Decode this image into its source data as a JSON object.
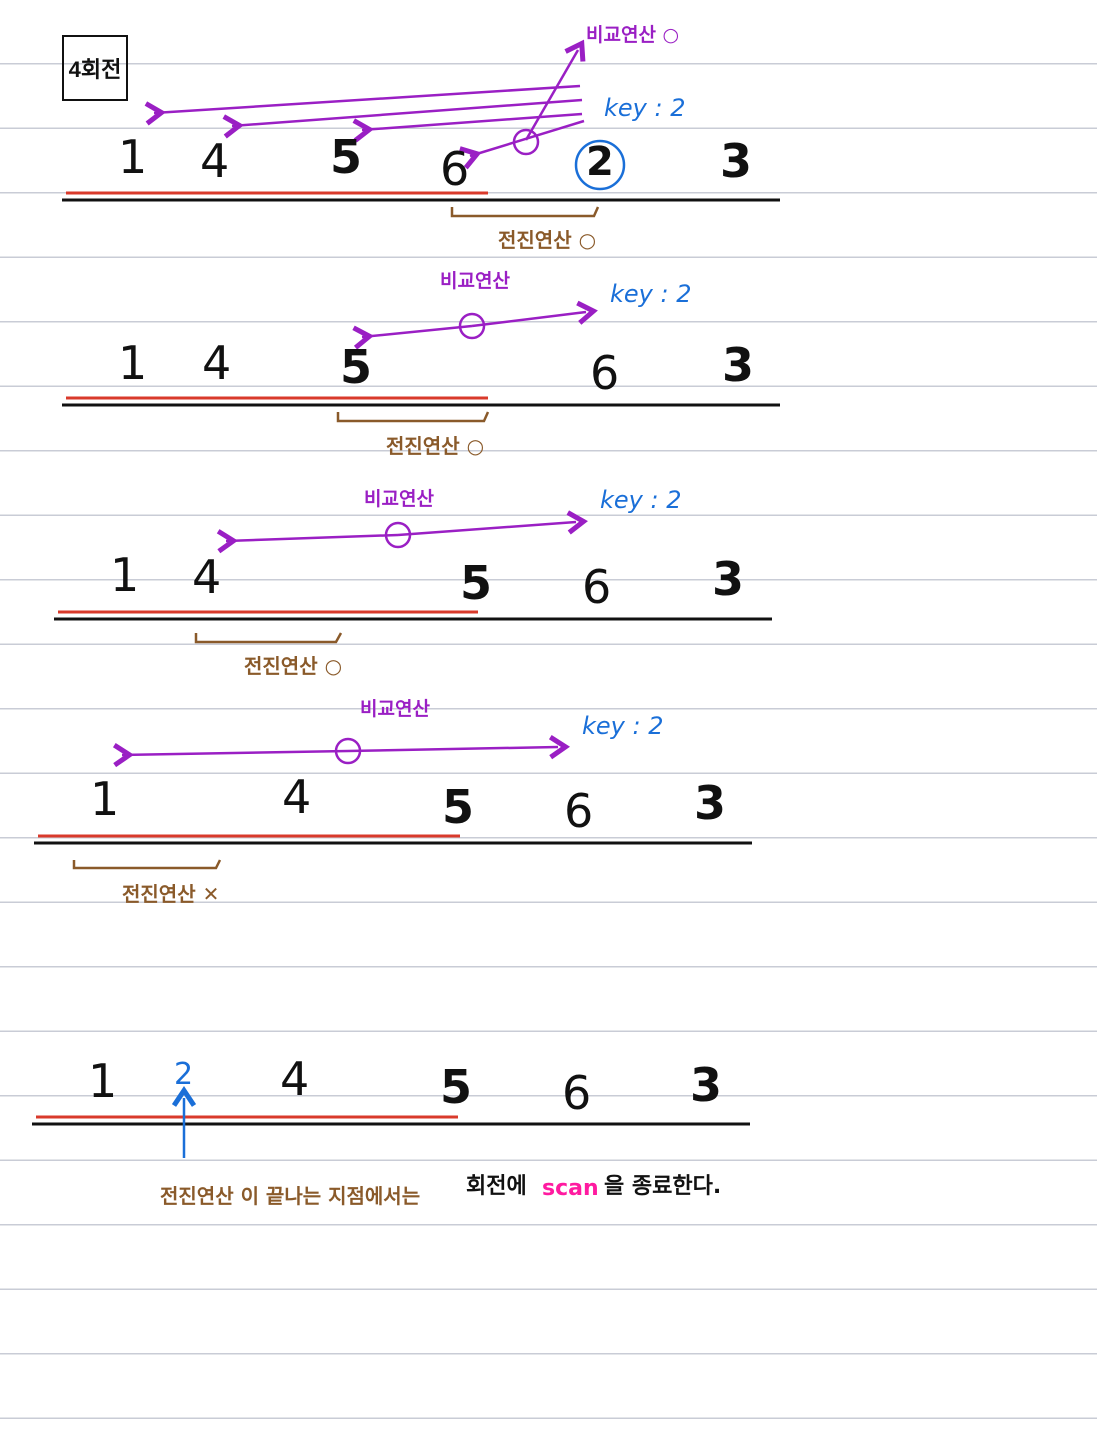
{
  "title": "4회전",
  "labels": {
    "compare": "비교연산",
    "compare_ok": "비교연산 ○",
    "shift_ok": "전진연산 ○",
    "shift_no": "전진연산 ✕",
    "key": "key : 2"
  },
  "steps": [
    {
      "values": [
        "1",
        "4",
        "5",
        "6",
        "2",
        "3"
      ]
    },
    {
      "values": [
        "1",
        "4",
        "5",
        "6",
        "3"
      ]
    },
    {
      "values": [
        "1",
        "4",
        "5",
        "6",
        "3"
      ]
    },
    {
      "values": [
        "1",
        "4",
        "5",
        "6",
        "3"
      ]
    }
  ],
  "final": {
    "values": [
      "1",
      "2",
      "4",
      "5",
      "6",
      "3"
    ],
    "note_part1": "전진연산 이 끝나는 지점에서는",
    "note_part2": "회전에",
    "note_scan": "scan",
    "note_part3": "을 종료한다."
  },
  "colors": {
    "purple": "#9a1fc4",
    "blue": "#1a6fd8",
    "brown": "#8a5a2a",
    "red": "#d93a2b",
    "pink": "#ff1aa0"
  }
}
